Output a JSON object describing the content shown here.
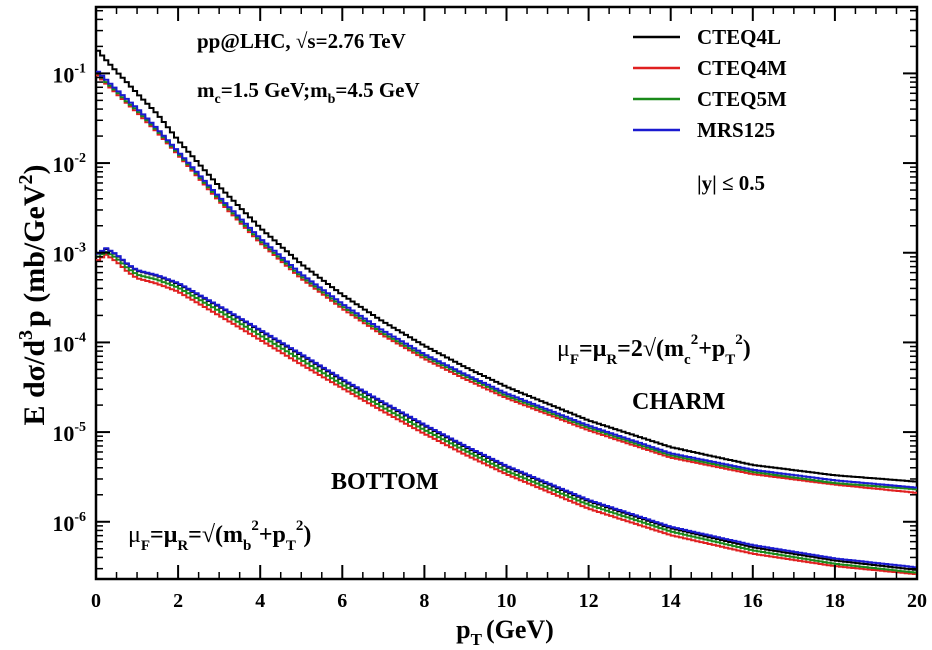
{
  "chart_data": {
    "type": "line",
    "title": "",
    "xlabel": "p",
    "xlabel_sub": "T",
    "xlabel_unit": "(GeV)",
    "ylabel": "E dσ/d",
    "ylabel_sup": "3",
    "ylabel_rest": "p (mb/GeV",
    "ylabel_sup2": "2",
    "ylabel_end": ")",
    "xlim": [
      0,
      20
    ],
    "ylim": [
      2.3e-07,
      0.55
    ],
    "yscale": "log",
    "grid": false,
    "legend_position": "top-right",
    "x_ticks": [
      {
        "value": 0,
        "label": "0"
      },
      {
        "value": 2,
        "label": "2"
      },
      {
        "value": 4,
        "label": "4"
      },
      {
        "value": 6,
        "label": "6"
      },
      {
        "value": 8,
        "label": "8"
      },
      {
        "value": 10,
        "label": "10"
      },
      {
        "value": 12,
        "label": "12"
      },
      {
        "value": 14,
        "label": "14"
      },
      {
        "value": 16,
        "label": "16"
      },
      {
        "value": 18,
        "label": "18"
      },
      {
        "value": 20,
        "label": "20"
      }
    ],
    "y_ticks": [
      {
        "value": 1e-06,
        "base": "10",
        "exp": "-6"
      },
      {
        "value": 1e-05,
        "base": "10",
        "exp": "-5"
      },
      {
        "value": 0.0001,
        "base": "10",
        "exp": "-4"
      },
      {
        "value": 0.001,
        "base": "10",
        "exp": "-3"
      },
      {
        "value": 0.01,
        "base": "10",
        "exp": "-2"
      },
      {
        "value": 0.1,
        "base": "10",
        "exp": "-1"
      }
    ],
    "x_sample": [
      0.0,
      0.25,
      0.5,
      0.75,
      1.0,
      1.5,
      2.0,
      3.0,
      4.0,
      5.0,
      6.0,
      7.0,
      8.0,
      9.0,
      10.0,
      12.0,
      14.0,
      16.0,
      18.0,
      20.0
    ],
    "series": [
      {
        "name": "CTEQ4L",
        "group": "charm",
        "color": "#000000",
        "values": [
          0.19,
          0.14,
          0.105,
          0.08,
          0.06,
          0.035,
          0.018,
          0.0055,
          0.0019,
          0.00075,
          0.00034,
          0.00017,
          9.2e-05,
          5.3e-05,
          3.2e-05,
          1.35e-05,
          6.8e-06,
          4.3e-06,
          3.3e-06,
          2.8e-06
        ]
      },
      {
        "name": "CTEQ4M",
        "group": "charm",
        "color": "#e02020",
        "values": [
          0.1,
          0.077,
          0.06,
          0.047,
          0.037,
          0.022,
          0.0125,
          0.0038,
          0.0013,
          0.00052,
          0.00024,
          0.00012,
          6.6e-05,
          3.9e-05,
          2.4e-05,
          1.05e-05,
          5.2e-06,
          3.4e-06,
          2.6e-06,
          2.1e-06
        ]
      },
      {
        "name": "CTEQ5M",
        "group": "charm",
        "color": "#1a8a1a",
        "values": [
          0.105,
          0.08,
          0.063,
          0.049,
          0.039,
          0.023,
          0.013,
          0.004,
          0.00137,
          0.00055,
          0.000255,
          0.000127,
          7e-05,
          4.2e-05,
          2.55e-05,
          1.12e-05,
          5.5e-06,
          3.6e-06,
          2.7e-06,
          2.3e-06
        ]
      },
      {
        "name": "MRS125",
        "group": "charm",
        "color": "#1a1ad0",
        "values": [
          0.11,
          0.085,
          0.066,
          0.052,
          0.041,
          0.024,
          0.0135,
          0.0042,
          0.00145,
          0.00058,
          0.00027,
          0.000135,
          7.4e-05,
          4.4e-05,
          2.7e-05,
          1.18e-05,
          5.8e-06,
          3.8e-06,
          2.9e-06,
          2.4e-06
        ]
      },
      {
        "name": "CTEQ4L",
        "group": "bottom",
        "color": "#000000",
        "values": [
          0.00095,
          0.0011,
          0.00095,
          0.00075,
          0.00063,
          0.00055,
          0.00045,
          0.00025,
          0.000135,
          7.2e-05,
          3.8e-05,
          2.1e-05,
          1.18e-05,
          6.8e-06,
          4.1e-06,
          1.7e-06,
          8.5e-07,
          5.2e-07,
          3.7e-07,
          2.9e-07
        ]
      },
      {
        "name": "CTEQ4M",
        "group": "bottom",
        "color": "#e02020",
        "values": [
          0.0008,
          0.00095,
          0.0008,
          0.00063,
          0.00052,
          0.00045,
          0.00037,
          0.0002,
          0.000107,
          5.7e-05,
          3.1e-05,
          1.7e-05,
          9.6e-06,
          5.6e-06,
          3.4e-06,
          1.4e-06,
          7.1e-07,
          4.4e-07,
          3.2e-07,
          2.6e-07
        ]
      },
      {
        "name": "CTEQ5M",
        "group": "bottom",
        "color": "#1a8a1a",
        "values": [
          0.00088,
          0.00102,
          0.00088,
          0.00069,
          0.00057,
          0.0005,
          0.00041,
          0.000225,
          0.00012,
          6.4e-05,
          3.4e-05,
          1.88e-05,
          1.06e-05,
          6.2e-06,
          3.7e-06,
          1.55e-06,
          7.8e-07,
          4.8e-07,
          3.4e-07,
          2.7e-07
        ]
      },
      {
        "name": "MRS125",
        "group": "bottom",
        "color": "#1a1ad0",
        "values": [
          0.00095,
          0.00112,
          0.00096,
          0.00076,
          0.00064,
          0.00056,
          0.00046,
          0.000255,
          0.000138,
          7.4e-05,
          3.9e-05,
          2.15e-05,
          1.21e-05,
          7e-06,
          4.2e-06,
          1.75e-06,
          8.8e-07,
          5.5e-07,
          3.9e-07,
          3.1e-07
        ]
      }
    ],
    "annotations": {
      "header1_a": "pp@LHC, ",
      "header1_b": "√s=2.76 TeV",
      "header2_a": "m",
      "header2_b": "c",
      "header2_c": "=1.5 GeV;m",
      "header2_d": "b",
      "header2_e": "=4.5 GeV",
      "rapidity": "|y| ≤ 0.5",
      "charm_label": "CHARM",
      "bottom_label": "BOTTOM",
      "charm_scale": {
        "p1": "μ",
        "s1": "F",
        "p2": "=μ",
        "s2": "R",
        "p3": "=2√(m",
        "s3": "c",
        "e3": "2",
        "p4": "+p",
        "s4": "T",
        "e4": "2",
        "p5": ")"
      },
      "bottom_scale": {
        "p1": "μ",
        "s1": "F",
        "p2": "=μ",
        "s2": "R",
        "p3": "=√(m",
        "s3": "b",
        "e3": "2",
        "p4": "+p",
        "s4": "T",
        "e4": "2",
        "p5": ")"
      }
    }
  }
}
